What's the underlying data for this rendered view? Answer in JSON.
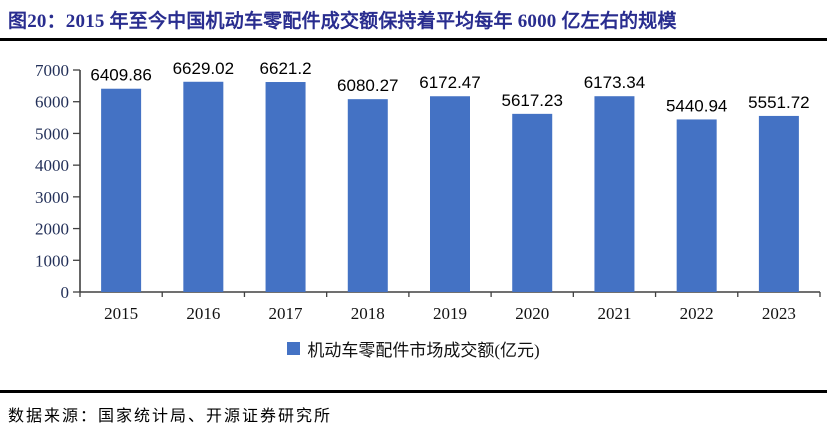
{
  "figure": {
    "title": "图20：2015 年至今中国机动车零配件成交额保持着平均每年 6000 亿左右的规模",
    "source": "数据来源：国家统计局、开源证券研究所"
  },
  "chart_data": {
    "type": "bar",
    "title": "",
    "categories": [
      "2015",
      "2016",
      "2017",
      "2018",
      "2019",
      "2020",
      "2021",
      "2022",
      "2023"
    ],
    "values": [
      6409.86,
      6629.02,
      6621.2,
      6080.27,
      6172.47,
      5617.23,
      6173.34,
      5440.94,
      5551.72
    ],
    "data_labels": [
      "6409.86",
      "6629.02",
      "6621.2",
      "6080.27",
      "6172.47",
      "5617.23",
      "6173.34",
      "5440.94",
      "5551.72"
    ],
    "legend": [
      "机动车零配件市场成交额(亿元)"
    ],
    "legend_position": "bottom",
    "xlabel": "",
    "ylabel": "",
    "ylim": [
      0,
      7000
    ],
    "yticks": [
      0,
      1000,
      2000,
      3000,
      4000,
      5000,
      6000,
      7000
    ],
    "grid": false
  },
  "colors": {
    "title_text": "#292D8F",
    "rule": "#000000",
    "bar_fill": "#4472C4",
    "axis_line": "#404040",
    "ytick_label": "#233059",
    "xtick_label": "#111111",
    "data_label": "#000000",
    "legend_text": "#111111",
    "source_text": "#000000"
  }
}
